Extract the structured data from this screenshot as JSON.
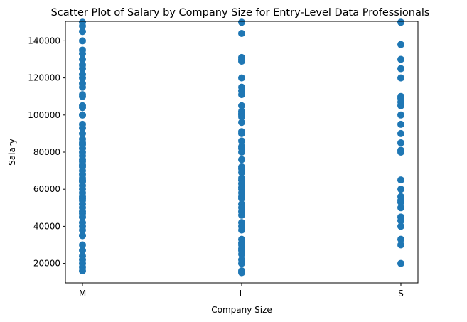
{
  "chart_data": {
    "type": "scatter",
    "title": "Scatter Plot of Salary by Company Size for Entry-Level Data Professionals",
    "xlabel": "Company Size",
    "ylabel": "Salary",
    "categories": [
      "M",
      "L",
      "S"
    ],
    "ylim": [
      9500,
      150500
    ],
    "yticks": [
      20000,
      40000,
      60000,
      80000,
      100000,
      120000,
      140000
    ],
    "marker_color": "#1f77b4",
    "grid": false,
    "legend": "none",
    "series": [
      {
        "category": "M",
        "values": [
          150000,
          148000,
          145000,
          140000,
          135000,
          133000,
          130000,
          127000,
          125000,
          122000,
          120000,
          117000,
          115000,
          111000,
          110000,
          105000,
          104000,
          100000,
          100000,
          95000,
          93000,
          90000,
          87000,
          85000,
          84000,
          82000,
          80000,
          78000,
          76000,
          75000,
          73000,
          72000,
          70000,
          68000,
          66000,
          65000,
          64000,
          62000,
          60000,
          58000,
          56000,
          55000,
          54000,
          52000,
          50000,
          48000,
          47000,
          45000,
          42000,
          40000,
          38000,
          35000,
          35000,
          30000,
          27000,
          24000,
          22000,
          20000,
          18000,
          16000
        ]
      },
      {
        "category": "L",
        "values": [
          150000,
          144000,
          131000,
          130000,
          129000,
          120000,
          115000,
          113000,
          111000,
          105000,
          102000,
          101000,
          100000,
          99000,
          96000,
          91000,
          90000,
          86000,
          83000,
          82000,
          80000,
          76000,
          72000,
          71000,
          69000,
          66000,
          65000,
          63000,
          61000,
          60000,
          58000,
          56000,
          55000,
          52000,
          50000,
          48000,
          46000,
          42000,
          40000,
          38000,
          33000,
          31000,
          30000,
          28000,
          27000,
          25000,
          22000,
          20000,
          16000,
          15000
        ]
      },
      {
        "category": "S",
        "values": [
          150000,
          138000,
          130000,
          125000,
          120000,
          110000,
          109000,
          107000,
          105000,
          100000,
          95000,
          90000,
          85000,
          81000,
          80000,
          65000,
          60000,
          56000,
          54000,
          53000,
          50000,
          45000,
          43000,
          40000,
          33000,
          30000,
          20000
        ]
      }
    ]
  }
}
